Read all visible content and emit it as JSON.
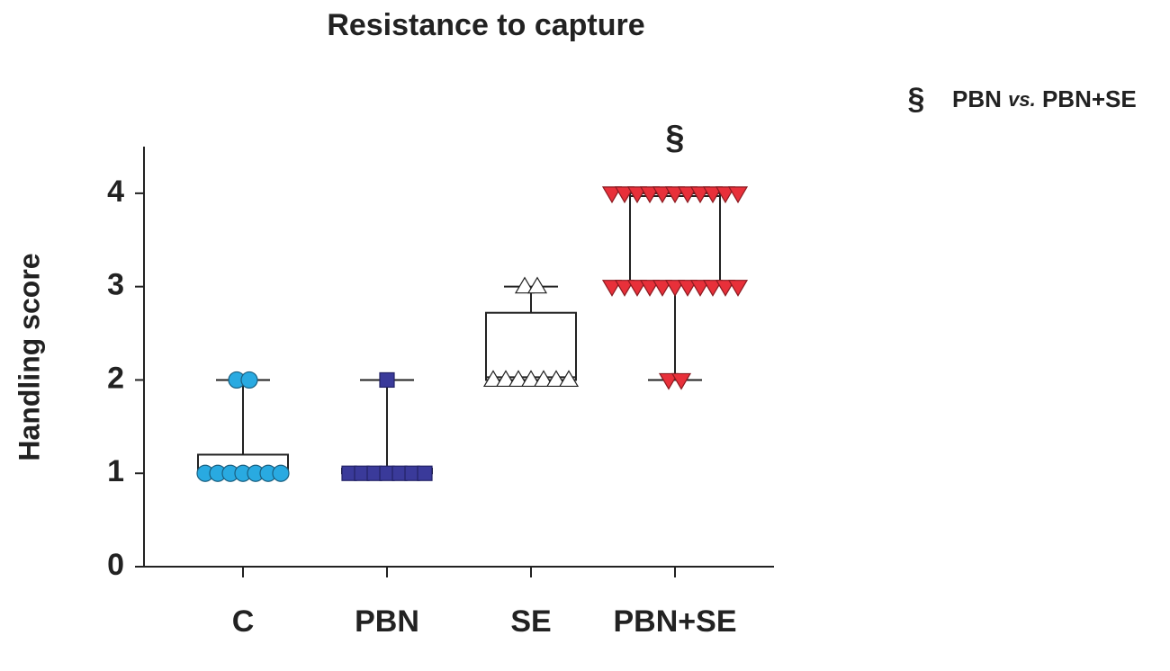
{
  "chart_data": {
    "type": "box",
    "title": "Resistance to capture",
    "ylabel": "Handling score",
    "categories": [
      "C",
      "PBN",
      "SE",
      "PBN+SE"
    ],
    "boxes": [
      {
        "color": "#29aae1",
        "stroke": "#1a5f80",
        "marker": "circle",
        "min": 1,
        "q1": 1,
        "median": 1,
        "q3": 1.2,
        "max": 2,
        "points": [
          2,
          2,
          1,
          1,
          1,
          1,
          1,
          1,
          1
        ]
      },
      {
        "color": "#3a3a9a",
        "stroke": "#222266",
        "marker": "square",
        "min": 1,
        "q1": 1,
        "median": 1,
        "q3": 1.05,
        "max": 2,
        "points": [
          2,
          1,
          1,
          1,
          1,
          1,
          1,
          1
        ]
      },
      {
        "color": "#ffffff",
        "stroke": "#222222",
        "marker": "triangle-up",
        "min": 2,
        "q1": 2,
        "median": 2.03,
        "q3": 2.72,
        "max": 3,
        "points": [
          3,
          3,
          2,
          2,
          2,
          2,
          2,
          2,
          2
        ]
      },
      {
        "color": "#e8303a",
        "stroke": "#8a1a20",
        "marker": "triangle-down",
        "min": 2,
        "q1": 3.03,
        "median": 3.97,
        "q3": 4,
        "max": 4,
        "points": [
          4,
          4,
          4,
          4,
          4,
          4,
          4,
          4,
          4,
          4,
          4,
          3,
          3,
          3,
          3,
          3,
          3,
          3,
          3,
          3,
          3,
          3,
          2,
          2
        ]
      }
    ],
    "annotation": {
      "category_index": 3,
      "text": "§"
    },
    "note": {
      "symbol": "§",
      "left": "PBN",
      "italic": "vs.",
      "right": "PBN+SE"
    },
    "ylim": [
      0,
      4.5
    ],
    "yticks": [
      0,
      1,
      2,
      3,
      4
    ]
  }
}
